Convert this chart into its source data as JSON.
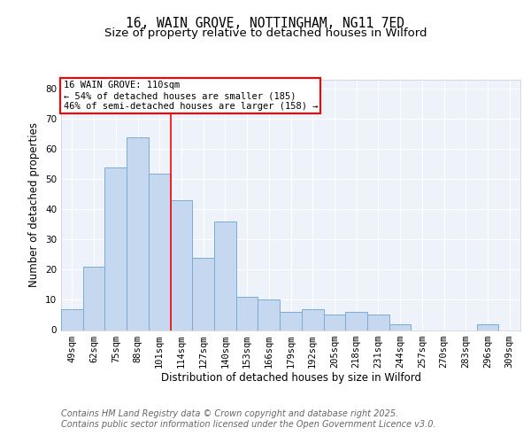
{
  "title_line1": "16, WAIN GROVE, NOTTINGHAM, NG11 7ED",
  "title_line2": "Size of property relative to detached houses in Wilford",
  "xlabel": "Distribution of detached houses by size in Wilford",
  "ylabel": "Number of detached properties",
  "categories": [
    "49sqm",
    "62sqm",
    "75sqm",
    "88sqm",
    "101sqm",
    "114sqm",
    "127sqm",
    "140sqm",
    "153sqm",
    "166sqm",
    "179sqm",
    "192sqm",
    "205sqm",
    "218sqm",
    "231sqm",
    "244sqm",
    "257sqm",
    "270sqm",
    "283sqm",
    "296sqm",
    "309sqm"
  ],
  "values": [
    7,
    21,
    54,
    64,
    52,
    43,
    24,
    36,
    11,
    10,
    6,
    7,
    5,
    6,
    5,
    2,
    0,
    0,
    0,
    2,
    0
  ],
  "bar_facecolor": "#c5d8f0",
  "bar_edgecolor": "#7aadd4",
  "redline_x": 4.5,
  "annotation_title": "16 WAIN GROVE: 110sqm",
  "annotation_line2": "← 54% of detached houses are smaller (185)",
  "annotation_line3": "46% of semi-detached houses are larger (158) →",
  "ylim": [
    0,
    83
  ],
  "yticks": [
    0,
    10,
    20,
    30,
    40,
    50,
    60,
    70,
    80
  ],
  "background_color": "#eef2fa",
  "grid_color": "#ffffff",
  "title_fontsize": 10.5,
  "subtitle_fontsize": 9.5,
  "axis_label_fontsize": 8.5,
  "tick_fontsize": 7.5,
  "annotation_fontsize": 7.5,
  "footer_fontsize": 7,
  "footer_line1": "Contains HM Land Registry data © Crown copyright and database right 2025.",
  "footer_line2": "Contains public sector information licensed under the Open Government Licence v3.0."
}
